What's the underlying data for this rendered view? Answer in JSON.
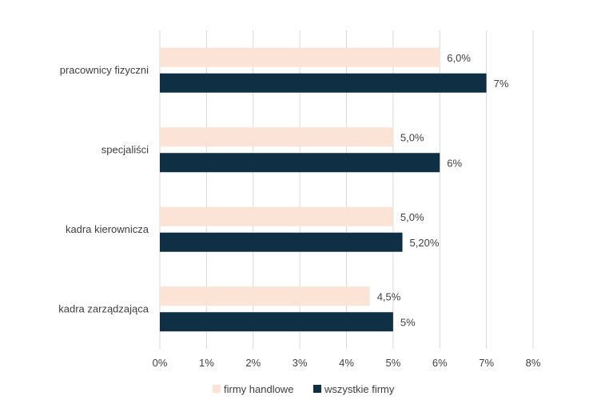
{
  "chart_data": {
    "type": "bar",
    "orientation": "horizontal",
    "title": "",
    "xlabel": "",
    "ylabel": "",
    "categories": [
      "pracownicy fizyczni",
      "specjaliści",
      "kadra kierownicza",
      "kadra zarządzająca"
    ],
    "series": [
      {
        "name": "firmy handlowe",
        "color": "#FBE3D6",
        "values": [
          6.0,
          5.0,
          5.0,
          4.5
        ],
        "labels": [
          "6,0%",
          "5,0%",
          "5,0%",
          "4,5%"
        ]
      },
      {
        "name": "wszystkie firmy",
        "color": "#0E2F44",
        "values": [
          7.0,
          6.0,
          5.2,
          5.0
        ],
        "labels": [
          "7%",
          "6%",
          "5,20%",
          "5%"
        ]
      }
    ],
    "xlim": [
      0,
      8
    ],
    "xticks": [
      0,
      1,
      2,
      3,
      4,
      5,
      6,
      7,
      8
    ],
    "xtick_labels": [
      "0%",
      "1%",
      "2%",
      "3%",
      "4%",
      "5%",
      "6%",
      "7%",
      "8%"
    ],
    "grid": true,
    "legend": "bottom"
  }
}
